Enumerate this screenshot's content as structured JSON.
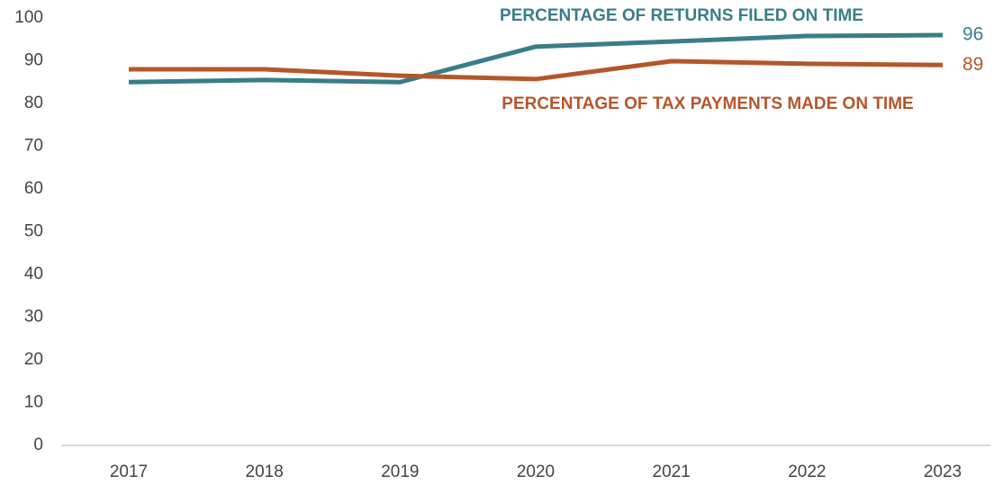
{
  "chart_data": {
    "type": "line",
    "categories": [
      "2017",
      "2018",
      "2019",
      "2020",
      "2021",
      "2022",
      "2023"
    ],
    "series": [
      {
        "name": "PERCENTAGE OF RETURNS FILED ON TIME",
        "color": "#3a7d8a",
        "values": [
          85,
          85.5,
          85,
          93.3,
          94.5,
          95.8,
          96
        ]
      },
      {
        "name": "PERCENTAGE OF TAX PAYMENTS MADE ON TIME",
        "color": "#b5562a",
        "values": [
          88,
          88,
          86.5,
          85.7,
          89.9,
          89.3,
          89
        ]
      }
    ],
    "ylim": [
      0,
      100
    ],
    "yticks": [
      0,
      10,
      20,
      30,
      40,
      50,
      60,
      70,
      80,
      90,
      100
    ],
    "grid": false
  }
}
